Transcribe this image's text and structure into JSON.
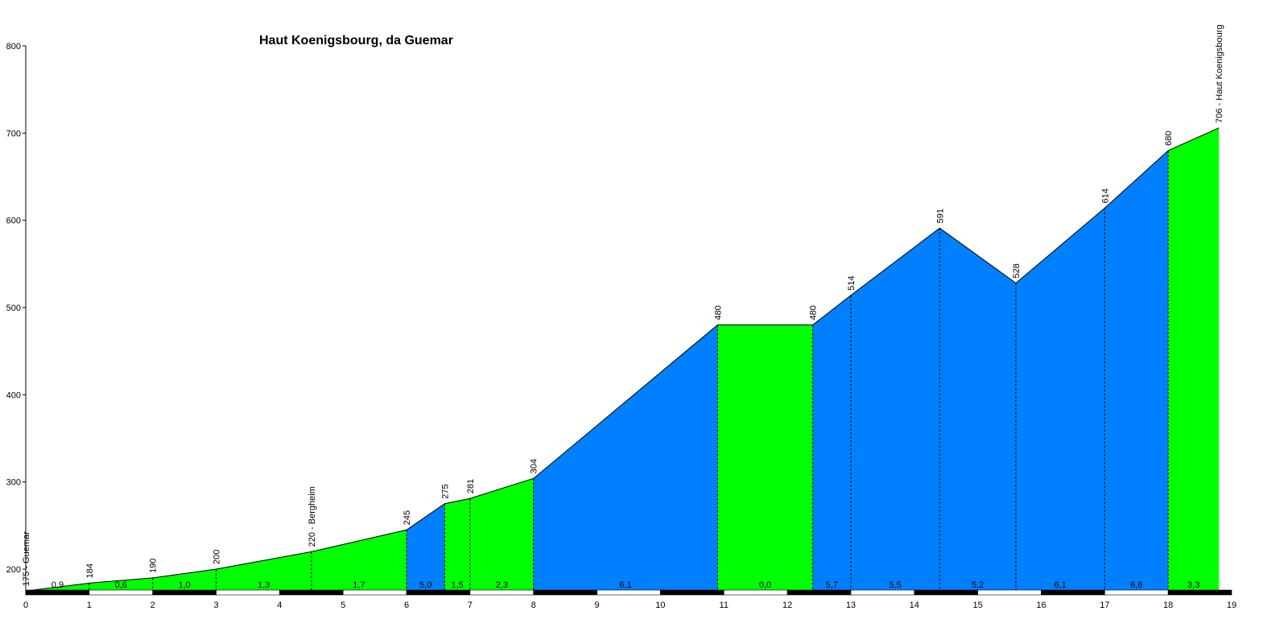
{
  "chart_data": {
    "type": "area",
    "title": "Haut Koenigsbourg, da Guemar",
    "xlabel": "",
    "ylabel": "",
    "xlim": [
      0,
      19
    ],
    "ylim": [
      165,
      800
    ],
    "x_ticks": [
      0,
      1,
      2,
      3,
      4,
      5,
      6,
      7,
      8,
      9,
      10,
      11,
      12,
      13,
      14,
      15,
      16,
      17,
      18,
      19
    ],
    "y_ticks": [
      200,
      300,
      400,
      500,
      600,
      700,
      800
    ],
    "colors": {
      "green": "#00ff00",
      "blue": "#0080ff",
      "outline": "#000000"
    },
    "points": [
      {
        "x": 0.0,
        "y": 175,
        "label": "175 - Guemar"
      },
      {
        "x": 1.0,
        "y": 184,
        "label": "184"
      },
      {
        "x": 2.0,
        "y": 190,
        "label": "190"
      },
      {
        "x": 3.0,
        "y": 200,
        "label": "200"
      },
      {
        "x": 4.5,
        "y": 220,
        "label": "220 - Bergheim"
      },
      {
        "x": 6.0,
        "y": 245,
        "label": "245"
      },
      {
        "x": 6.6,
        "y": 275,
        "label": "275"
      },
      {
        "x": 7.0,
        "y": 281,
        "label": "281"
      },
      {
        "x": 8.0,
        "y": 304,
        "label": "304"
      },
      {
        "x": 10.9,
        "y": 480,
        "label": "480"
      },
      {
        "x": 12.4,
        "y": 480,
        "label": "480"
      },
      {
        "x": 13.0,
        "y": 514,
        "label": "514"
      },
      {
        "x": 14.4,
        "y": 591,
        "label": "591"
      },
      {
        "x": 15.6,
        "y": 528,
        "label": "528"
      },
      {
        "x": 17.0,
        "y": 614,
        "label": "614"
      },
      {
        "x": 18.0,
        "y": 680,
        "label": "680"
      },
      {
        "x": 18.8,
        "y": 706,
        "label": "706 - Haut Koenigsbourg"
      }
    ],
    "segments": [
      {
        "gradient": "0,9",
        "color": "green"
      },
      {
        "gradient": "0,6",
        "color": "green"
      },
      {
        "gradient": "1,0",
        "color": "green"
      },
      {
        "gradient": "1,3",
        "color": "green"
      },
      {
        "gradient": "1,7",
        "color": "green"
      },
      {
        "gradient": "5,0",
        "color": "blue"
      },
      {
        "gradient": "1,5",
        "color": "green"
      },
      {
        "gradient": "2,3",
        "color": "green"
      },
      {
        "gradient": "6,1",
        "color": "blue"
      },
      {
        "gradient": "0,0",
        "color": "green"
      },
      {
        "gradient": "5,7",
        "color": "blue"
      },
      {
        "gradient": "5,5",
        "color": "blue"
      },
      {
        "gradient": "5,2",
        "color": "blue"
      },
      {
        "gradient": "6,1",
        "color": "blue"
      },
      {
        "gradient": "6,6",
        "color": "blue"
      },
      {
        "gradient": "3,3",
        "color": "green"
      }
    ]
  }
}
